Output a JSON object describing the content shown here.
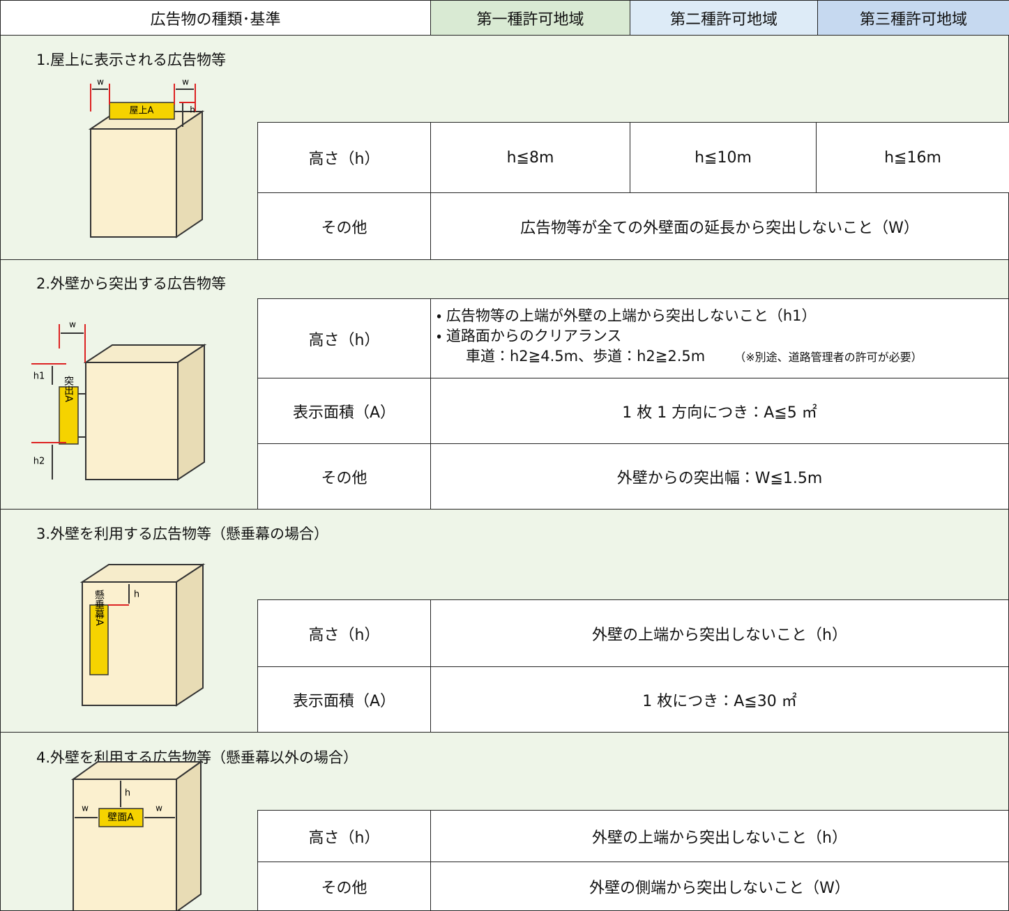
{
  "header": {
    "columns": [
      "広告物の種類･基準",
      "第一種許可地域",
      "第二種許可地域",
      "第三種許可地域"
    ]
  },
  "sections": [
    {
      "title": "1.屋上に表示される広告物等",
      "figure": {
        "sign": "屋上A",
        "marks": [
          "w",
          "w",
          "h"
        ]
      },
      "rows": [
        {
          "label": "高さ（h）",
          "cells": [
            "h≦8m",
            "h≦10m",
            "h≦16m"
          ]
        },
        {
          "label": "その他",
          "cells": [
            "広告物等が全ての外壁面の延長から突出しないこと（W）"
          ]
        }
      ]
    },
    {
      "title": "2.外壁から突出する広告物等",
      "figure": {
        "sign": "突出A",
        "marks": [
          "w",
          "h1",
          "h2"
        ]
      },
      "rows": [
        {
          "label": "高さ（h）",
          "cells": [
            [
              "・ 広告物等の上端が外壁の上端から突出しないこと（h1）",
              "・ 道路面からのクリアランス",
              "車道：h2≧4.5m、歩道：h2≧2.5m",
              "（※別途、道路管理者の許可が必要）"
            ]
          ]
        },
        {
          "label": "表示面積（A）",
          "cells": [
            "1 枚 1 方向につき：A≦5 ㎡"
          ]
        },
        {
          "label": "その他",
          "cells": [
            "外壁からの突出幅：W≦1.5m"
          ]
        }
      ]
    },
    {
      "title": "3.外壁を利用する広告物等（懸垂幕の場合）",
      "figure": {
        "sign": "懸垂幕A",
        "marks": [
          "h"
        ]
      },
      "rows": [
        {
          "label": "高さ（h）",
          "cells": [
            "外壁の上端から突出しないこと（h）"
          ]
        },
        {
          "label": "表示面積（A）",
          "cells": [
            "1 枚につき：A≦30 ㎡"
          ]
        }
      ]
    },
    {
      "title": "4.外壁を利用する広告物等（懸垂幕以外の場合）",
      "figure": {
        "sign": "壁面A",
        "marks": [
          "h",
          "w",
          "w"
        ]
      },
      "rows": [
        {
          "label": "高さ（h）",
          "cells": [
            "外壁の上端から突出しないこと（h）"
          ]
        },
        {
          "label": "その他",
          "cells": [
            "外壁の側端から突出しないこと（W）"
          ]
        }
      ]
    }
  ]
}
